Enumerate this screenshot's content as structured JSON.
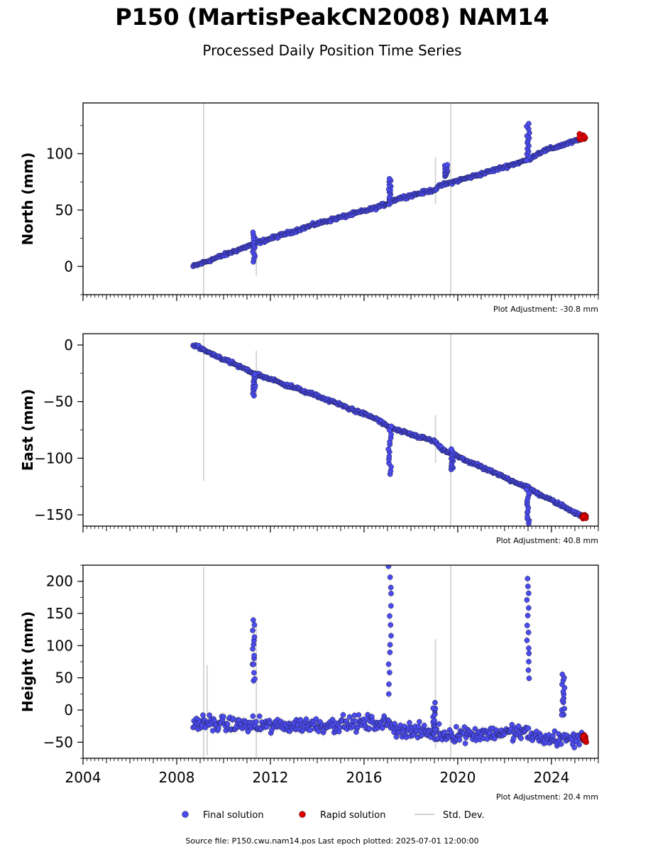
{
  "figure": {
    "title": "P150 (MartisPeakCN2008) NAM14",
    "subtitle": "Processed Daily Position Time Series",
    "footer": "Source file: P150.cwu.nam14.pos  Last epoch plotted: 2025-07-01 12:00:00",
    "legend": [
      {
        "label": "Final solution",
        "kind": "marker",
        "color": "#4b4bf0"
      },
      {
        "label": "Rapid solution",
        "kind": "marker",
        "color": "#e00000"
      },
      {
        "label": "Std. Dev.",
        "kind": "line",
        "color": "#d3d3d3"
      }
    ],
    "colors": {
      "final": "#4b4bf0",
      "rapid": "#e00000",
      "stddev": "#d3d3d3"
    }
  },
  "chart_data": [
    {
      "type": "scatter",
      "ylabel": "North (mm)",
      "adjustment": "Plot Adjustment: -30.8 mm",
      "xlim": [
        2004,
        2026
      ],
      "ylim": [
        -25,
        145
      ],
      "yticks": [
        0,
        50,
        100
      ],
      "xticks": [
        2004,
        2008,
        2012,
        2016,
        2020,
        2024
      ],
      "show_xtick_labels": false,
      "trend": [
        [
          2008.7,
          0
        ],
        [
          2011.3,
          20
        ],
        [
          2014.0,
          38
        ],
        [
          2016.5,
          52
        ],
        [
          2017.0,
          56
        ],
        [
          2017.4,
          60
        ],
        [
          2019.0,
          68
        ],
        [
          2019.3,
          72
        ],
        [
          2021.0,
          82
        ],
        [
          2022.9,
          94
        ],
        [
          2023.6,
          102
        ],
        [
          2025.3,
          113
        ]
      ],
      "excursions": [
        {
          "x": 2011.3,
          "lo": 5,
          "hi": 30
        },
        {
          "x": 2017.1,
          "lo": 55,
          "hi": 78
        },
        {
          "x": 2023.0,
          "lo": 95,
          "hi": 126
        },
        {
          "x": 2019.5,
          "lo": 80,
          "hi": 90
        }
      ],
      "gap_steps": [
        {
          "x": 2017.3,
          "from": 78,
          "to": 60
        },
        {
          "x": 2023.2,
          "from": 126,
          "to": 100
        }
      ],
      "stddev_spikes": [
        {
          "x": 2009.15,
          "lo": -25,
          "hi": 145
        },
        {
          "x": 2011.4,
          "lo": -8,
          "hi": 28
        },
        {
          "x": 2019.05,
          "lo": 55,
          "hi": 97
        },
        {
          "x": 2019.7,
          "lo": -25,
          "hi": 145
        }
      ],
      "rapid": {
        "x": [
          2025.2,
          2025.45
        ],
        "y": [
          112,
          118
        ]
      }
    },
    {
      "type": "scatter",
      "ylabel": "East (mm)",
      "adjustment": "Plot Adjustment: 40.8 mm",
      "xlim": [
        2004,
        2026
      ],
      "ylim": [
        -160,
        10
      ],
      "yticks": [
        0,
        -50,
        -100,
        -150
      ],
      "xticks": [
        2004,
        2008,
        2012,
        2016,
        2020,
        2024
      ],
      "show_xtick_labels": false,
      "trend": [
        [
          2008.7,
          0
        ],
        [
          2011.3,
          -25
        ],
        [
          2014.0,
          -45
        ],
        [
          2016.5,
          -65
        ],
        [
          2017.0,
          -72
        ],
        [
          2017.5,
          -76
        ],
        [
          2019.0,
          -85
        ],
        [
          2019.3,
          -92
        ],
        [
          2021.0,
          -108
        ],
        [
          2022.9,
          -125
        ],
        [
          2023.5,
          -132
        ],
        [
          2025.4,
          -152
        ]
      ],
      "excursions": [
        {
          "x": 2011.3,
          "lo": -44,
          "hi": -25
        },
        {
          "x": 2017.1,
          "lo": -114,
          "hi": -72
        },
        {
          "x": 2023.0,
          "lo": -158,
          "hi": -128
        },
        {
          "x": 2019.75,
          "lo": -110,
          "hi": -92
        }
      ],
      "gap_steps": [],
      "stddev_spikes": [
        {
          "x": 2009.15,
          "lo": -120,
          "hi": 10
        },
        {
          "x": 2011.4,
          "lo": -45,
          "hi": -5
        },
        {
          "x": 2019.05,
          "lo": -104,
          "hi": -62
        },
        {
          "x": 2019.7,
          "lo": -160,
          "hi": 10
        }
      ],
      "rapid": {
        "x": [
          2025.3,
          2025.5
        ],
        "y": [
          -154,
          -150
        ]
      }
    },
    {
      "type": "scatter",
      "ylabel": "Height (mm)",
      "adjustment": "Plot Adjustment: 20.4 mm",
      "xlim": [
        2004,
        2026
      ],
      "ylim": [
        -75,
        225
      ],
      "yticks": [
        -50,
        0,
        50,
        100,
        150,
        200
      ],
      "xticks": [
        2004,
        2008,
        2012,
        2016,
        2020,
        2024
      ],
      "show_xtick_labels": true,
      "trend": [
        [
          2008.7,
          -20
        ],
        [
          2012.0,
          -25
        ],
        [
          2016.9,
          -20
        ],
        [
          2017.5,
          -30
        ],
        [
          2019.3,
          -38
        ],
        [
          2022.8,
          -35
        ],
        [
          2023.6,
          -45
        ],
        [
          2025.4,
          -45
        ]
      ],
      "excursions": [
        {
          "x": 2011.3,
          "lo": 45,
          "hi": 137
        },
        {
          "x": 2017.1,
          "lo": 25,
          "hi": 222
        },
        {
          "x": 2023.0,
          "lo": 50,
          "hi": 205
        },
        {
          "x": 2024.5,
          "lo": -10,
          "hi": 55
        },
        {
          "x": 2019.0,
          "lo": -30,
          "hi": 10
        }
      ],
      "gap_steps": [],
      "stddev_spikes": [
        {
          "x": 2009.15,
          "lo": -75,
          "hi": 222
        },
        {
          "x": 2009.3,
          "lo": -70,
          "hi": 70
        },
        {
          "x": 2011.4,
          "lo": -75,
          "hi": 130
        },
        {
          "x": 2019.05,
          "lo": -60,
          "hi": 110
        },
        {
          "x": 2019.7,
          "lo": -75,
          "hi": 225
        }
      ],
      "rapid": {
        "x": [
          2025.3,
          2025.5
        ],
        "y": [
          -50,
          -38
        ]
      }
    }
  ]
}
